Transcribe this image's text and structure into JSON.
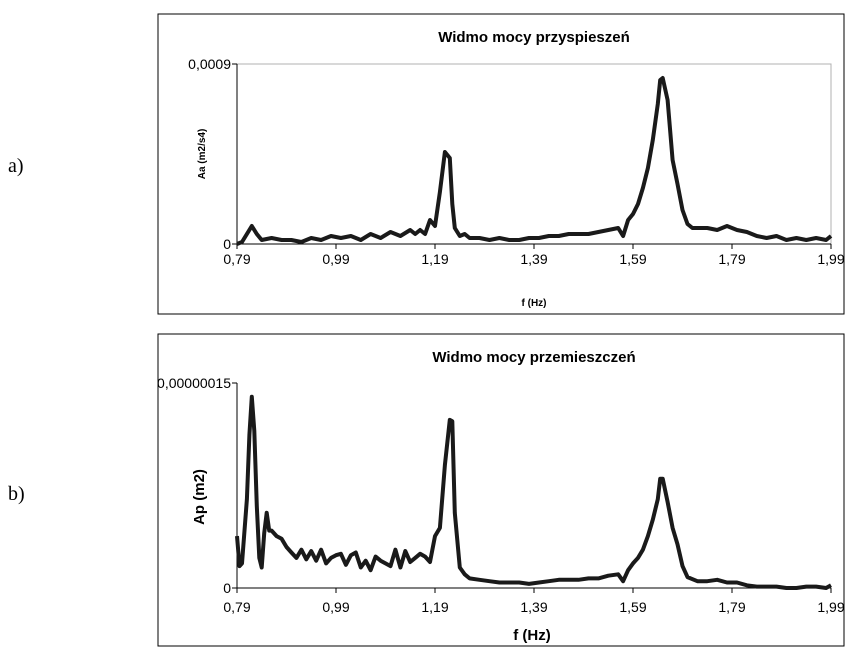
{
  "panels": [
    {
      "label": "a)"
    },
    {
      "label": "b)"
    }
  ],
  "chart_data": [
    {
      "type": "line",
      "title": "Widmo mocy przyspieszeń",
      "xlabel": "f (Hz)",
      "ylabel": "Aa (m2/s4)",
      "xlim": [
        0.79,
        1.99
      ],
      "ylim": [
        0,
        0.0009
      ],
      "x_tick_labels": [
        "0,79",
        "0,99",
        "1,19",
        "1,39",
        "1,59",
        "1,79",
        "1,99"
      ],
      "y_tick_labels": [
        "0",
        "0,0009"
      ],
      "color": "#1a1a1a",
      "series": [
        {
          "x": [
            0.79,
            0.8,
            0.81,
            0.82,
            0.83,
            0.84,
            0.86,
            0.88,
            0.9,
            0.92,
            0.94,
            0.96,
            0.98,
            1.0,
            1.02,
            1.04,
            1.06,
            1.08,
            1.1,
            1.12,
            1.14,
            1.15,
            1.16,
            1.17,
            1.18,
            1.19,
            1.2,
            1.21,
            1.22,
            1.225,
            1.23,
            1.24,
            1.25,
            1.26,
            1.28,
            1.3,
            1.32,
            1.34,
            1.36,
            1.38,
            1.4,
            1.42,
            1.44,
            1.46,
            1.48,
            1.5,
            1.52,
            1.54,
            1.56,
            1.57,
            1.58,
            1.59,
            1.6,
            1.61,
            1.62,
            1.63,
            1.64,
            1.645,
            1.65,
            1.66,
            1.67,
            1.68,
            1.69,
            1.7,
            1.71,
            1.72,
            1.74,
            1.76,
            1.78,
            1.8,
            1.82,
            1.84,
            1.86,
            1.88,
            1.9,
            1.92,
            1.94,
            1.96,
            1.98,
            1.99
          ],
          "y": [
            0,
            1e-05,
            5e-05,
            9e-05,
            5e-05,
            2e-05,
            3e-05,
            2e-05,
            2e-05,
            1e-05,
            3e-05,
            2e-05,
            4e-05,
            3e-05,
            4e-05,
            2e-05,
            5e-05,
            3e-05,
            6e-05,
            4e-05,
            7e-05,
            5e-05,
            7e-05,
            5e-05,
            0.00012,
            9e-05,
            0.00026,
            0.00046,
            0.00043,
            0.0002,
            8e-05,
            4e-05,
            5e-05,
            3e-05,
            3e-05,
            2e-05,
            3e-05,
            2e-05,
            2e-05,
            3e-05,
            3e-05,
            4e-05,
            4e-05,
            5e-05,
            5e-05,
            5e-05,
            6e-05,
            7e-05,
            8e-05,
            4e-05,
            0.00012,
            0.00015,
            0.0002,
            0.00028,
            0.00038,
            0.00052,
            0.0007,
            0.00082,
            0.00083,
            0.00072,
            0.00042,
            0.0003,
            0.00017,
            0.0001,
            8e-05,
            8e-05,
            8e-05,
            7e-05,
            9e-05,
            7e-05,
            6e-05,
            4e-05,
            3e-05,
            4e-05,
            2e-05,
            3e-05,
            2e-05,
            3e-05,
            2e-05,
            4e-05
          ]
        }
      ]
    },
    {
      "type": "line",
      "title": "Widmo mocy przemieszczeń",
      "xlabel": "f (Hz)",
      "ylabel": "Ap (m2)",
      "xlim": [
        0.79,
        1.99
      ],
      "ylim": [
        0,
        1.5e-07
      ],
      "x_tick_labels": [
        "0,79",
        "0,99",
        "1,19",
        "1,39",
        "1,59",
        "1,79",
        "1,99"
      ],
      "y_tick_labels": [
        "0",
        "0,00000015"
      ],
      "color": "#1a1a1a",
      "series": [
        {
          "x": [
            0.79,
            0.795,
            0.8,
            0.81,
            0.815,
            0.82,
            0.825,
            0.83,
            0.835,
            0.84,
            0.845,
            0.85,
            0.855,
            0.86,
            0.87,
            0.88,
            0.89,
            0.9,
            0.91,
            0.92,
            0.93,
            0.94,
            0.95,
            0.96,
            0.97,
            0.98,
            0.99,
            1.0,
            1.01,
            1.02,
            1.03,
            1.04,
            1.05,
            1.06,
            1.07,
            1.08,
            1.09,
            1.1,
            1.11,
            1.12,
            1.13,
            1.14,
            1.15,
            1.16,
            1.17,
            1.18,
            1.19,
            1.2,
            1.21,
            1.22,
            1.225,
            1.23,
            1.24,
            1.25,
            1.26,
            1.28,
            1.3,
            1.32,
            1.34,
            1.36,
            1.38,
            1.4,
            1.42,
            1.44,
            1.46,
            1.48,
            1.5,
            1.52,
            1.54,
            1.56,
            1.57,
            1.58,
            1.59,
            1.6,
            1.61,
            1.62,
            1.63,
            1.64,
            1.645,
            1.65,
            1.66,
            1.67,
            1.68,
            1.69,
            1.7,
            1.72,
            1.74,
            1.76,
            1.78,
            1.8,
            1.82,
            1.84,
            1.86,
            1.88,
            1.9,
            1.92,
            1.94,
            1.96,
            1.98,
            1.99
          ],
          "y": [
            3.8e-08,
            1.6e-08,
            1.8e-08,
            6.5e-08,
            1.12e-07,
            1.4e-07,
            1.15e-07,
            6e-08,
            2.2e-08,
            1.5e-08,
            4e-08,
            5.5e-08,
            4.2e-08,
            4.2e-08,
            3.8e-08,
            3.6e-08,
            3e-08,
            2.6e-08,
            2.2e-08,
            2.8e-08,
            2.1e-08,
            2.7e-08,
            2e-08,
            2.8e-08,
            1.8e-08,
            2.2e-08,
            2.4e-08,
            2.5e-08,
            1.7e-08,
            2.4e-08,
            2.6e-08,
            1.5e-08,
            2e-08,
            1.3e-08,
            2.3e-08,
            2e-08,
            1.8e-08,
            1.6e-08,
            2.8e-08,
            1.5e-08,
            2.7e-08,
            1.9e-08,
            2.2e-08,
            2.5e-08,
            2.3e-08,
            1.9e-08,
            3.8e-08,
            4.4e-08,
            9e-08,
            1.23e-07,
            1.22e-07,
            5.5e-08,
            1.5e-08,
            1e-08,
            7e-09,
            6e-09,
            5e-09,
            4e-09,
            4e-09,
            4e-09,
            3e-09,
            4e-09,
            5e-09,
            6e-09,
            6e-09,
            6e-09,
            7e-09,
            7e-09,
            9e-09,
            1e-08,
            5e-09,
            1.3e-08,
            1.8e-08,
            2.2e-08,
            2.8e-08,
            3.8e-08,
            5e-08,
            6.5e-08,
            8e-08,
            8e-08,
            6.3e-08,
            4.4e-08,
            3.2e-08,
            1.6e-08,
            8e-09,
            5e-09,
            5e-09,
            6e-09,
            4e-09,
            4e-09,
            2e-09,
            1e-09,
            1e-09,
            1e-09,
            0,
            0,
            1e-09,
            1e-09,
            0,
            2e-09
          ]
        }
      ]
    }
  ]
}
